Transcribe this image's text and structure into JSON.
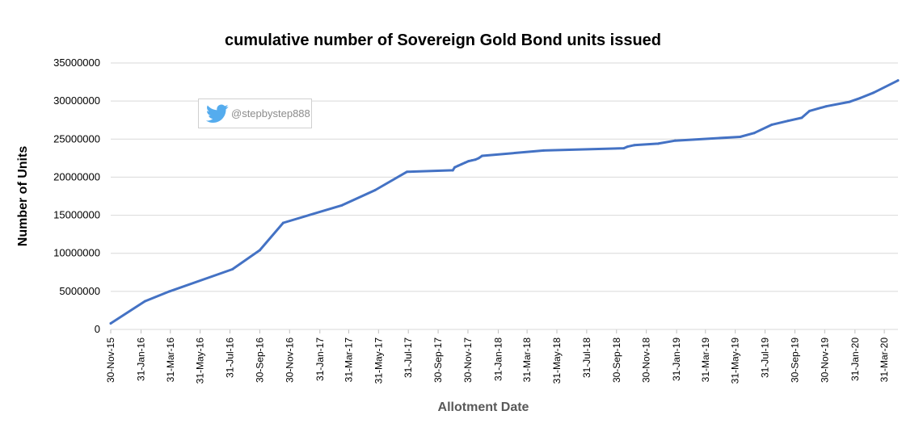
{
  "chart_data": {
    "type": "line",
    "title": "cumulative number of Sovereign Gold Bond units issued",
    "xlabel": "Allotment Date",
    "ylabel": "Number of Units",
    "ylim": [
      0,
      35000000
    ],
    "y_ticks": [
      "0",
      "5000000",
      "10000000",
      "15000000",
      "20000000",
      "25000000",
      "30000000",
      "35000000"
    ],
    "x_tick_labels": [
      "30-Nov-15",
      "31-Jan-16",
      "31-Mar-16",
      "31-May-16",
      "31-Jul-16",
      "30-Sep-16",
      "30-Nov-16",
      "31-Jan-17",
      "31-Mar-17",
      "31-May-17",
      "31-Jul-17",
      "30-Sep-17",
      "30-Nov-17",
      "31-Jan-18",
      "31-Mar-18",
      "31-May-18",
      "31-Jul-18",
      "30-Sep-18",
      "30-Nov-18",
      "31-Jan-19",
      "31-Mar-19",
      "31-May-19",
      "31-Jul-19",
      "30-Sep-19",
      "30-Nov-19",
      "31-Jan-20",
      "31-Mar-20"
    ],
    "grid": true,
    "legend": "none",
    "line_color": "#4472c4",
    "series": [
      {
        "x": [
          "2015-11-30",
          "2016-02-08",
          "2016-03-29",
          "2016-08-05",
          "2016-09-30",
          "2016-11-17",
          "2017-03-17",
          "2017-05-24",
          "2017-07-28",
          "2017-10-30",
          "2017-11-03",
          "2017-11-10",
          "2017-11-17",
          "2017-11-24",
          "2017-12-01",
          "2017-12-08",
          "2017-12-15",
          "2017-12-22",
          "2017-12-29",
          "2018-05-04",
          "2018-10-15",
          "2018-10-22",
          "2018-11-05",
          "2018-12-24",
          "2019-01-28",
          "2019-06-10",
          "2019-07-09",
          "2019-08-14",
          "2019-09-16",
          "2019-10-14",
          "2019-10-30",
          "2019-12-03",
          "2020-01-20",
          "2020-02-11",
          "2020-03-09",
          "2020-04-28"
        ],
        "y": [
          800000,
          3700000,
          5000000,
          7900000,
          10400000,
          14000000,
          16300000,
          18300000,
          20700000,
          20900000,
          21300000,
          21500000,
          21700000,
          21900000,
          22100000,
          22200000,
          22300000,
          22500000,
          22800000,
          23500000,
          23800000,
          24000000,
          24200000,
          24400000,
          24800000,
          25300000,
          25800000,
          26900000,
          27400000,
          27800000,
          28700000,
          29300000,
          29900000,
          30400000,
          31100000,
          32700000
        ]
      }
    ]
  },
  "watermark": {
    "handle": "@stepbystep888",
    "icon": "twitter-bird-icon",
    "icon_color": "#55acee"
  }
}
